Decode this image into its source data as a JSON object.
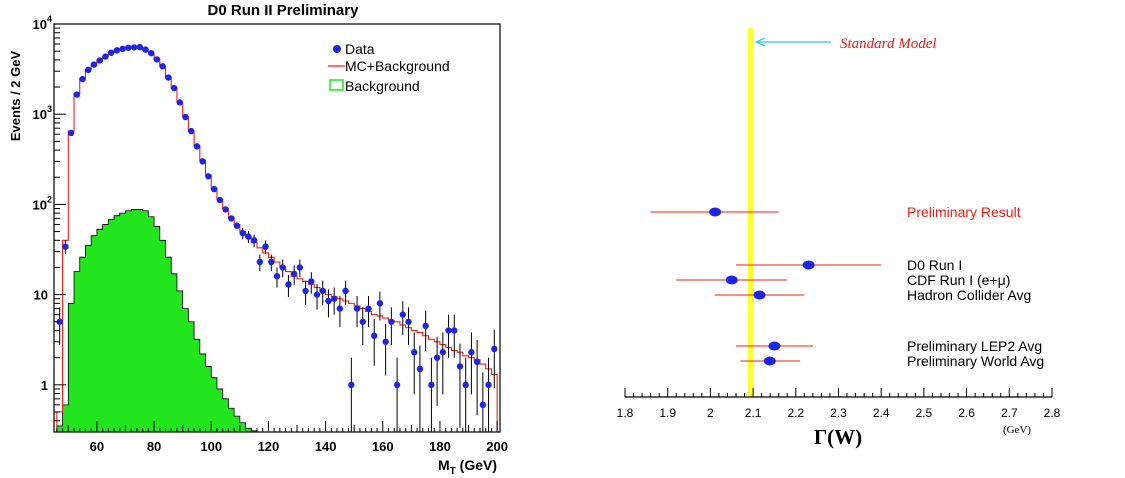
{
  "chart_data": [
    {
      "type": "histogram",
      "title": "D0 Run II Preliminary",
      "xlabel_main": "M",
      "xlabel_sub": "T",
      "xlabel_unit": " (GeV)",
      "ylabel": "Events / 2 GeV",
      "xlim": [
        45,
        201
      ],
      "ylim": [
        0.3,
        10000
      ],
      "yscale": "log",
      "x_ticks": [
        "60",
        "80",
        "100",
        "120",
        "140",
        "160",
        "180",
        "200"
      ],
      "y_ticks": [
        {
          "base": "1",
          "exp": ""
        },
        {
          "base": "10",
          "exp": ""
        },
        {
          "base": "10",
          "exp": "2"
        },
        {
          "base": "10",
          "exp": "3"
        },
        {
          "base": "10",
          "exp": "4"
        }
      ],
      "legend": {
        "data": "Data",
        "mc": "MC+Background",
        "background": "Background"
      },
      "legend_position": "top-right",
      "colors": {
        "data": "#1e24e6",
        "mc": "#e8201c",
        "background": "#22e51e"
      },
      "data_x": [
        47,
        49,
        51,
        53,
        55,
        57,
        59,
        61,
        63,
        65,
        67,
        69,
        71,
        73,
        75,
        77,
        79,
        81,
        83,
        85,
        87,
        89,
        91,
        93,
        95,
        97,
        99,
        101,
        103,
        105,
        107,
        109,
        111,
        113,
        115,
        117,
        119,
        121,
        123,
        125,
        127,
        129,
        131,
        133,
        135,
        137,
        139,
        141,
        143,
        145,
        147,
        149,
        151,
        153,
        155,
        157,
        159,
        161,
        163,
        165,
        167,
        169,
        171,
        173,
        175,
        177,
        179,
        181,
        183,
        185,
        187,
        189,
        191,
        193,
        195,
        197,
        199
      ],
      "data_y": [
        5,
        34,
        620,
        1650,
        2450,
        3100,
        3550,
        3950,
        4350,
        4800,
        5100,
        5300,
        5450,
        5500,
        5550,
        5200,
        4750,
        4050,
        3400,
        2550,
        1950,
        1350,
        930,
        650,
        440,
        300,
        205,
        148,
        112,
        88,
        70,
        58,
        48,
        44,
        40,
        23,
        34,
        23,
        16,
        20,
        13,
        17,
        20,
        11,
        14,
        10,
        11,
        8.5,
        9,
        7,
        11,
        1,
        7,
        5,
        7,
        3.5,
        8,
        3,
        5,
        1,
        6,
        5,
        2.3,
        1.5,
        4.5,
        1,
        2,
        2.3,
        4,
        4,
        1.6,
        1,
        2.3,
        1.8,
        0.6,
        1,
        2.5
      ],
      "mc_x_edges": [
        46,
        48,
        50,
        52,
        54,
        56,
        58,
        60,
        62,
        64,
        66,
        68,
        70,
        72,
        74,
        76,
        78,
        80,
        82,
        84,
        86,
        88,
        90,
        92,
        94,
        96,
        98,
        100,
        102,
        104,
        106,
        108,
        110,
        112,
        114,
        116,
        118,
        120,
        122,
        124,
        126,
        128,
        130,
        132,
        134,
        136,
        138,
        140,
        142,
        144,
        146,
        148,
        150,
        152,
        154,
        156,
        158,
        160,
        162,
        164,
        166,
        168,
        170,
        172,
        174,
        176,
        178,
        180,
        182,
        184,
        186,
        188,
        190,
        192,
        194,
        196,
        198,
        200
      ],
      "mc_y": [
        0.5,
        40,
        650,
        1700,
        2500,
        3150,
        3600,
        4000,
        4400,
        4850,
        5150,
        5350,
        5500,
        5550,
        5550,
        5200,
        4750,
        4050,
        3400,
        2600,
        1950,
        1350,
        940,
        650,
        450,
        305,
        210,
        150,
        115,
        90,
        72,
        60,
        50,
        43,
        38,
        33,
        29,
        26,
        23,
        20,
        18,
        16,
        15,
        14,
        13,
        12,
        11,
        10,
        9.5,
        9,
        8.5,
        8,
        7.5,
        7,
        6.5,
        6,
        5.8,
        5.5,
        5.2,
        5,
        4.6,
        4.3,
        4,
        3.8,
        3.5,
        3.2,
        3,
        2.8,
        2.6,
        2.4,
        2.3,
        2.1,
        2,
        1.9,
        1.7,
        1.5,
        1.3
      ],
      "bkg_x_edges": [
        46,
        48,
        50,
        52,
        54,
        56,
        58,
        60,
        62,
        64,
        66,
        68,
        70,
        72,
        74,
        76,
        78,
        80,
        82,
        84,
        86,
        88,
        90,
        92,
        94,
        96,
        98,
        100,
        102,
        104,
        106,
        108,
        110,
        112,
        114,
        116,
        118
      ],
      "bkg_y": [
        0.35,
        0.6,
        8,
        18,
        26,
        35,
        45,
        53,
        60,
        68,
        75,
        80,
        85,
        88,
        88,
        85,
        73,
        57,
        40,
        26,
        17,
        11,
        7,
        5,
        3.2,
        2.2,
        1.6,
        1.2,
        0.9,
        0.7,
        0.55,
        0.45,
        0.38,
        0.33,
        0.31,
        0.3
      ]
    },
    {
      "type": "dot-whisker",
      "xlabel": "Γ(W)",
      "xunit": "(GeV)",
      "xlim": [
        1.8,
        2.8
      ],
      "x_ticks": [
        "1.8",
        "1.9",
        "2",
        "2.1",
        "2.2",
        "2.3",
        "2.4",
        "2.5",
        "2.6",
        "2.7",
        "2.8"
      ],
      "standard_model": {
        "label": "Standard Model",
        "value": 2.094,
        "band": [
          2.088,
          2.1
        ]
      },
      "colors": {
        "band": "#ffff33",
        "arrow": "#26c8e6",
        "sm_label": "#e8201c",
        "highlight": "#e8201c",
        "point": "#1e24e6",
        "error": "#e8201c"
      },
      "measurements": [
        {
          "label": "Preliminary Result",
          "value": 2.011,
          "low": 1.86,
          "high": 2.16,
          "highlight": true
        },
        {
          "label": "D0 Run I",
          "value": 2.23,
          "low": 2.06,
          "high": 2.4,
          "highlight": false
        },
        {
          "label": "CDF Run I (e+μ)",
          "value": 2.05,
          "low": 1.92,
          "high": 2.18,
          "highlight": false
        },
        {
          "label": "Hadron Collider Avg",
          "value": 2.115,
          "low": 2.01,
          "high": 2.22,
          "highlight": false
        },
        {
          "label": "Preliminary LEP2 Avg",
          "value": 2.15,
          "low": 2.06,
          "high": 2.24,
          "highlight": false
        },
        {
          "label": "Preliminary World Avg",
          "value": 2.139,
          "low": 2.07,
          "high": 2.21,
          "highlight": false
        }
      ]
    }
  ]
}
